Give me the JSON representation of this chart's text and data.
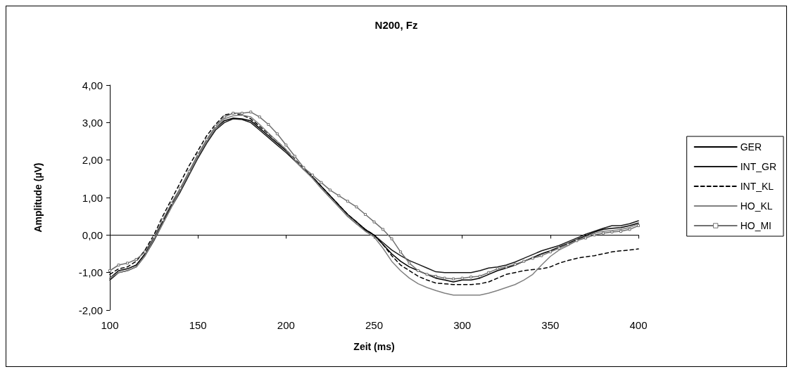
{
  "chart_data": {
    "type": "line",
    "title": "N200, Fz",
    "xlabel": "Zeit (ms)",
    "ylabel": "Amplitude (µV)",
    "x": [
      100,
      105,
      110,
      115,
      120,
      125,
      130,
      135,
      140,
      145,
      150,
      155,
      160,
      165,
      170,
      175,
      180,
      185,
      190,
      195,
      200,
      205,
      210,
      215,
      220,
      225,
      230,
      235,
      240,
      245,
      250,
      255,
      260,
      265,
      270,
      275,
      280,
      285,
      290,
      295,
      300,
      305,
      310,
      315,
      320,
      325,
      330,
      335,
      340,
      345,
      350,
      355,
      360,
      365,
      370,
      375,
      380,
      385,
      390,
      395,
      400
    ],
    "xlim": [
      100,
      400
    ],
    "xticks": [
      100,
      150,
      200,
      250,
      300,
      350,
      400
    ],
    "ylim": [
      -2,
      4
    ],
    "yticks": [
      {
        "value": -2,
        "label": "-2,00"
      },
      {
        "value": -1,
        "label": "-1,00"
      },
      {
        "value": 0,
        "label": "0,00"
      },
      {
        "value": 1,
        "label": "1,00"
      },
      {
        "value": 2,
        "label": "2,00"
      },
      {
        "value": 3,
        "label": "3,00"
      },
      {
        "value": 4,
        "label": "4,00"
      }
    ],
    "legend": "right",
    "line_style": "solid",
    "marker": "none",
    "series": [
      {
        "name": "GER",
        "color": "#000000",
        "values": [
          -1.15,
          -0.95,
          -0.9,
          -0.8,
          -0.5,
          -0.1,
          0.35,
          0.8,
          1.2,
          1.65,
          2.1,
          2.5,
          2.85,
          3.05,
          3.12,
          3.1,
          3.05,
          2.85,
          2.65,
          2.45,
          2.25,
          2.0,
          1.75,
          1.55,
          1.3,
          1.05,
          0.8,
          0.55,
          0.35,
          0.15,
          0.0,
          -0.25,
          -0.5,
          -0.7,
          -0.85,
          -0.95,
          -1.05,
          -1.15,
          -1.2,
          -1.25,
          -1.2,
          -1.2,
          -1.15,
          -1.05,
          -0.95,
          -0.88,
          -0.8,
          -0.7,
          -0.6,
          -0.5,
          -0.42,
          -0.32,
          -0.22,
          -0.12,
          -0.02,
          0.08,
          0.15,
          0.18,
          0.2,
          0.25,
          0.32
        ]
      },
      {
        "name": "INT_GR",
        "color": "#1a1a1a",
        "values": [
          -1.2,
          -1.0,
          -0.95,
          -0.85,
          -0.55,
          -0.15,
          0.3,
          0.75,
          1.15,
          1.6,
          2.05,
          2.45,
          2.8,
          3.0,
          3.1,
          3.08,
          3.0,
          2.8,
          2.6,
          2.4,
          2.2,
          1.98,
          1.75,
          1.52,
          1.25,
          1.0,
          0.75,
          0.5,
          0.3,
          0.12,
          0.0,
          -0.2,
          -0.4,
          -0.55,
          -0.68,
          -0.78,
          -0.88,
          -0.98,
          -1.0,
          -1.0,
          -1.0,
          -1.0,
          -0.95,
          -0.88,
          -0.85,
          -0.8,
          -0.72,
          -0.62,
          -0.52,
          -0.42,
          -0.35,
          -0.28,
          -0.18,
          -0.08,
          0.02,
          0.1,
          0.18,
          0.25,
          0.25,
          0.3,
          0.38
        ]
      },
      {
        "name": "INT_KL",
        "color": "#000000",
        "line_style": "dashed",
        "values": [
          -1.05,
          -0.9,
          -0.85,
          -0.7,
          -0.4,
          0.0,
          0.5,
          0.95,
          1.4,
          1.85,
          2.25,
          2.65,
          2.95,
          3.2,
          3.25,
          3.2,
          3.1,
          2.9,
          2.7,
          2.5,
          2.28,
          2.02,
          1.78,
          1.55,
          1.3,
          1.05,
          0.8,
          0.55,
          0.35,
          0.15,
          0.0,
          -0.25,
          -0.55,
          -0.8,
          -0.95,
          -1.1,
          -1.2,
          -1.28,
          -1.3,
          -1.32,
          -1.32,
          -1.32,
          -1.3,
          -1.25,
          -1.15,
          -1.05,
          -1.0,
          -0.95,
          -0.92,
          -0.9,
          -0.85,
          -0.75,
          -0.68,
          -0.62,
          -0.58,
          -0.55,
          -0.5,
          -0.45,
          -0.42,
          -0.4,
          -0.37
        ]
      },
      {
        "name": "HO_KL",
        "color": "#808080",
        "values": [
          -1.15,
          -1.0,
          -0.95,
          -0.85,
          -0.55,
          -0.12,
          0.3,
          0.75,
          1.2,
          1.65,
          2.1,
          2.5,
          2.85,
          3.1,
          3.18,
          3.2,
          3.15,
          2.95,
          2.72,
          2.5,
          2.28,
          2.0,
          1.75,
          1.52,
          1.25,
          1.0,
          0.75,
          0.5,
          0.3,
          0.1,
          -0.05,
          -0.35,
          -0.7,
          -0.95,
          -1.15,
          -1.3,
          -1.4,
          -1.48,
          -1.55,
          -1.6,
          -1.6,
          -1.6,
          -1.6,
          -1.55,
          -1.48,
          -1.4,
          -1.32,
          -1.2,
          -1.05,
          -0.8,
          -0.57,
          -0.4,
          -0.28,
          -0.15,
          -0.05,
          0.05,
          0.1,
          0.12,
          0.15,
          0.2,
          0.3
        ]
      },
      {
        "name": "HO_MI",
        "color": "#707070",
        "marker": "square",
        "values": [
          -0.95,
          -0.8,
          -0.75,
          -0.65,
          -0.45,
          -0.05,
          0.4,
          0.85,
          1.25,
          1.7,
          2.15,
          2.55,
          2.9,
          3.15,
          3.25,
          3.25,
          3.28,
          3.15,
          2.95,
          2.7,
          2.4,
          2.1,
          1.8,
          1.6,
          1.4,
          1.2,
          1.05,
          0.9,
          0.75,
          0.55,
          0.35,
          0.15,
          -0.1,
          -0.45,
          -0.75,
          -0.95,
          -1.05,
          -1.1,
          -1.15,
          -1.17,
          -1.15,
          -1.12,
          -1.1,
          -1.0,
          -0.9,
          -0.85,
          -0.78,
          -0.7,
          -0.62,
          -0.55,
          -0.45,
          -0.35,
          -0.25,
          -0.15,
          -0.08,
          0.0,
          0.05,
          0.08,
          0.1,
          0.15,
          0.25
        ]
      }
    ]
  }
}
